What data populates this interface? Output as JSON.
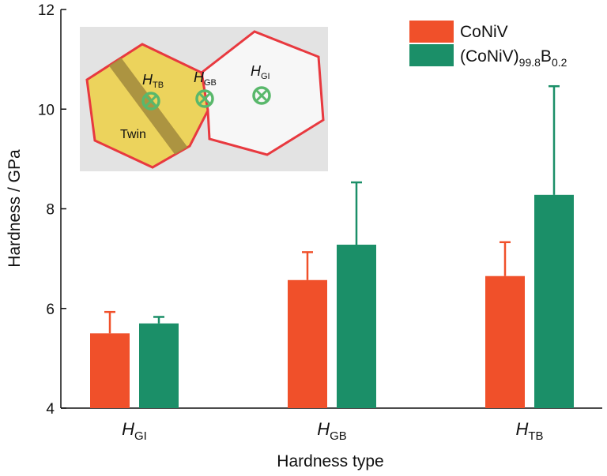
{
  "chart_data": {
    "type": "bar",
    "categories": [
      {
        "main": "H",
        "sub": "GI"
      },
      {
        "main": "H",
        "sub": "GB"
      },
      {
        "main": "H",
        "sub": "TB"
      }
    ],
    "series": [
      {
        "name": "CoNiV",
        "color": "#f0502a",
        "values": [
          5.5,
          6.57,
          6.65
        ],
        "errors": [
          0.43,
          0.56,
          0.68
        ]
      },
      {
        "name": "(CoNiV)",
        "name_sub1": "99.8",
        "name_mid": "B",
        "name_sub2": "0.2",
        "color": "#1b8f68",
        "values": [
          5.7,
          7.28,
          8.28
        ],
        "errors": [
          0.13,
          1.25,
          2.18
        ]
      }
    ],
    "xlabel": "Hardness type",
    "ylabel": "Hardness / GPa",
    "ylim": [
      4,
      12
    ],
    "yticks": [
      4,
      6,
      8,
      10,
      12
    ],
    "grid": false,
    "legend_position": "top-right"
  },
  "inset": {
    "labels": {
      "tb_main": "H",
      "tb_sub": "TB",
      "gb_main": "H",
      "gb_sub": "GB",
      "gi_main": "H",
      "gi_sub": "GI",
      "twin": "Twin"
    },
    "colors": {
      "background": "#e3e3e3",
      "twinned_grain": "#ecd35c",
      "plain_grain": "#f7f7f7",
      "boundary": "#e8393f",
      "twin_band": "#a58d3e",
      "indent_marker": "#59b86b"
    }
  }
}
